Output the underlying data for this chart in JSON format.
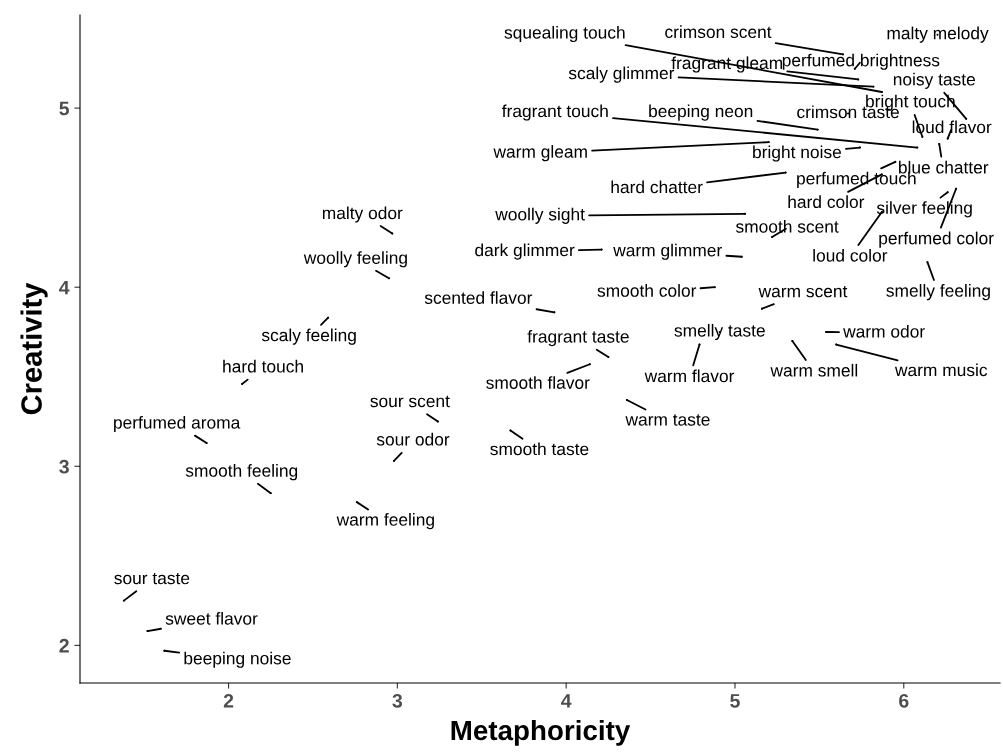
{
  "chart_data": {
    "type": "scatter",
    "xlabel": "Metaphoricity",
    "ylabel": "Creativity",
    "xlim": [
      1.12,
      6.57
    ],
    "ylim": [
      1.79,
      5.52
    ],
    "xticks": [
      2,
      3,
      4,
      5,
      6
    ],
    "yticks": [
      2,
      3,
      4,
      5
    ],
    "grid": false,
    "series": [
      {
        "color": "#000000",
        "x": [
          5.87,
          5.64,
          6.2,
          5.71,
          5.82,
          5.73,
          6.37,
          6.11,
          6.08,
          5.49,
          5.67,
          6.26,
          5.2,
          5.74,
          6.21,
          5.3,
          5.95,
          5.87,
          5.06,
          6.26,
          5.22,
          5.87,
          6.31,
          4.21,
          5.04,
          6.14,
          2.97,
          2.95,
          2.59,
          2.08,
          1.87,
          2.25,
          2.76,
          3.24,
          2.98,
          1.38,
          1.52,
          1.62,
          3.93,
          4.88,
          5.16,
          4.25,
          4.91,
          5.54,
          4.14,
          4.79,
          5.34,
          5.6,
          4.36,
          3.67
        ],
        "values": [
          5.09,
          5.3,
          5.41,
          5.22,
          5.12,
          5.16,
          4.94,
          4.84,
          4.78,
          4.88,
          4.97,
          4.83,
          4.81,
          4.78,
          4.8,
          4.64,
          4.7,
          4.63,
          4.41,
          4.53,
          4.28,
          4.42,
          4.55,
          4.21,
          4.17,
          4.14,
          4.3,
          4.05,
          3.83,
          3.46,
          3.13,
          2.85,
          2.8,
          3.25,
          3.03,
          2.25,
          2.08,
          1.97,
          3.86,
          4.0,
          3.88,
          3.61,
          3.75,
          3.75,
          3.57,
          3.68,
          3.7,
          3.68,
          3.37,
          3.2
        ],
        "value_labels": [
          "squealing touch",
          "crimson scent",
          "malty melody",
          "perfumed brightness",
          "scaly glimmer",
          "fragrant gleam",
          "noisy taste",
          "bright touch",
          "fragrant touch",
          "beeping neon",
          "crimson taste",
          "loud flavor",
          "warm gleam",
          "bright noise",
          "blue chatter",
          "hard chatter",
          "perfumed touch",
          "hard color",
          "woolly sight",
          "silver feeling",
          "smooth scent",
          "loud color",
          "perfumed color",
          "dark glimmer",
          "warm glimmer",
          "smelly feeling",
          "malty odor",
          "woolly feeling",
          "scaly feeling",
          "hard touch",
          "perfumed aroma",
          "smooth feeling",
          "warm feeling",
          "sour scent",
          "sour odor",
          "sour taste",
          "sweet flavor",
          "beeping noise",
          "scented flavor",
          "smooth color",
          "warm scent",
          "fragrant taste",
          "smelly taste",
          "warm odor",
          "smooth flavor",
          "warm flavor",
          "warm smell",
          "warm music",
          "warm taste",
          "smooth taste"
        ]
      }
    ]
  }
}
